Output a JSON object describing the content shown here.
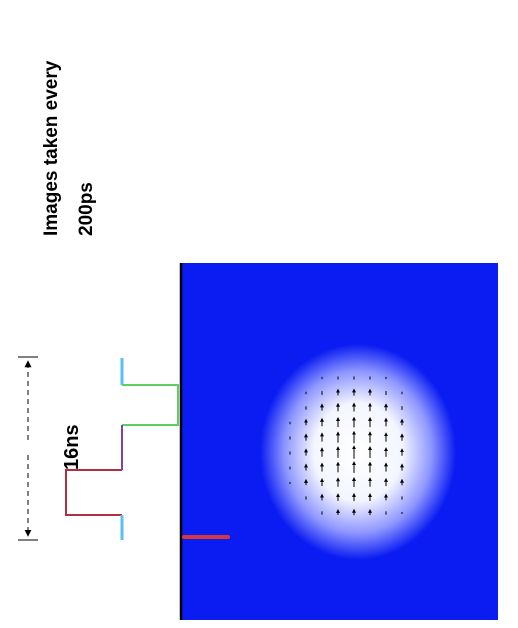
{
  "annotations": {
    "title_line1": "Images taken every",
    "title_line2": "200ps",
    "duration": "16ns"
  }
}
